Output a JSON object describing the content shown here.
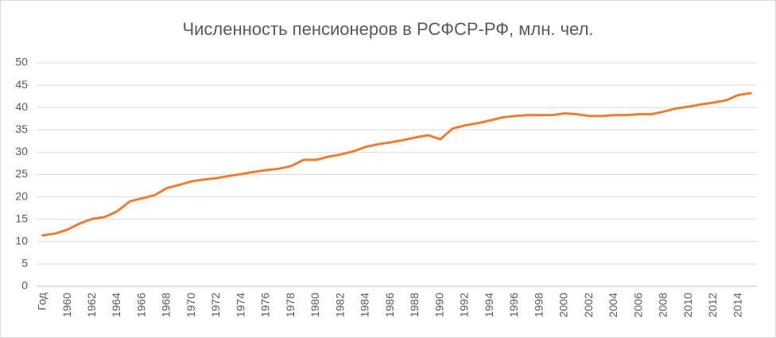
{
  "chart_data": {
    "type": "line",
    "title": "Численность пенсионеров в РСФСР-РФ, млн. чел.",
    "categories": [
      "Год",
      null,
      "1960",
      null,
      "1962",
      null,
      "1964",
      null,
      "1966",
      null,
      "1968",
      null,
      "1970",
      null,
      "1972",
      null,
      "1974",
      null,
      "1976",
      null,
      "1978",
      null,
      "1980",
      null,
      "1982",
      null,
      "1984",
      null,
      "1986",
      null,
      "1988",
      null,
      "1990",
      null,
      "1992",
      null,
      "1994",
      null,
      "1996",
      null,
      "1998",
      null,
      "2000",
      null,
      "2002",
      null,
      "2004",
      null,
      "2006",
      null,
      "2008",
      null,
      "2010",
      null,
      "2012",
      null,
      "2014",
      null
    ],
    "values": [
      11.4,
      11.8,
      12.7,
      14.1,
      15.1,
      15.5,
      16.8,
      19.0,
      19.7,
      20.4,
      22.0,
      22.7,
      23.5,
      23.9,
      24.2,
      24.7,
      25.1,
      25.6,
      26.0,
      26.3,
      26.9,
      28.3,
      28.3,
      29.0,
      29.5,
      30.2,
      31.2,
      31.8,
      32.2,
      32.7,
      33.3,
      33.8,
      32.9,
      35.3,
      36.0,
      36.5,
      37.1,
      37.8,
      38.1,
      38.3,
      38.3,
      38.3,
      38.7,
      38.5,
      38.1,
      38.1,
      38.3,
      38.3,
      38.5,
      38.5,
      39.1,
      39.8,
      40.2,
      40.7,
      41.1,
      41.6,
      42.8,
      43.2
    ],
    "color": "#ed7d31",
    "ylim": [
      0,
      50
    ],
    "yticks": [
      0,
      5,
      10,
      15,
      20,
      25,
      30,
      35,
      40,
      45,
      50
    ],
    "grid": true
  }
}
